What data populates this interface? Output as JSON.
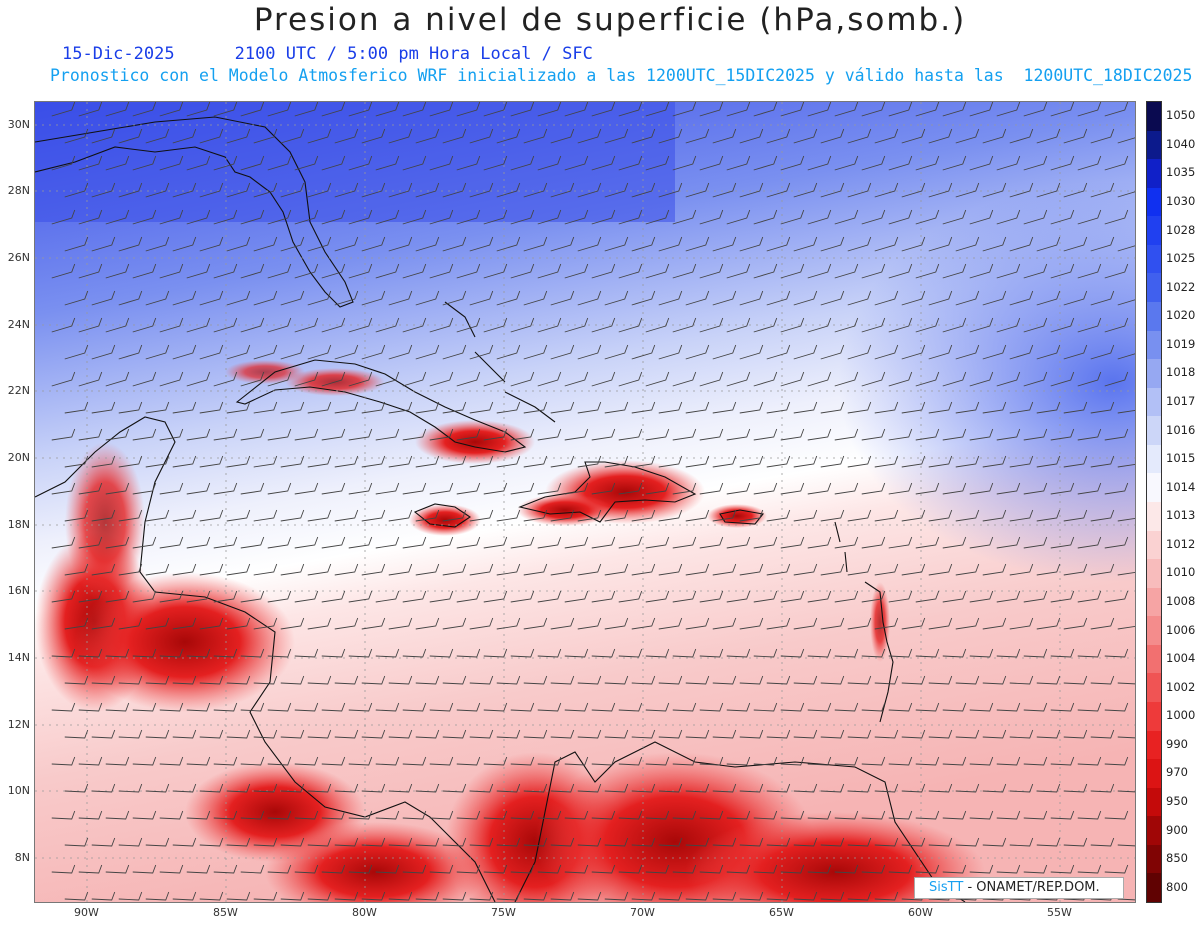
{
  "header": {
    "title": "Presion a nivel de superficie (hPa,somb.)",
    "date": "15-Dic-2025",
    "time_label": "2100 UTC / 5:00 pm Hora Local / SFC",
    "description": "Pronostico con el Modelo Atmosferico WRF inicializado a las 1200UTC_15DIC2025 y válido hasta las  1200UTC_18DIC2025"
  },
  "axes": {
    "lat_labels": [
      "30N",
      "28N",
      "26N",
      "24N",
      "22N",
      "20N",
      "18N",
      "16N",
      "14N",
      "12N",
      "10N",
      "8N"
    ],
    "lon_labels": [
      "90W",
      "85W",
      "80W",
      "75W",
      "70W",
      "65W",
      "60W",
      "55W"
    ]
  },
  "colorbar": {
    "levels": [
      "1050",
      "1040",
      "1035",
      "1030",
      "1028",
      "1025",
      "1022",
      "1020",
      "1019",
      "1018",
      "1017",
      "1016",
      "1015",
      "1014",
      "1013",
      "1012",
      "1010",
      "1008",
      "1006",
      "1004",
      "1002",
      "1000",
      "990",
      "970",
      "950",
      "900",
      "850",
      "800"
    ],
    "colors": [
      "#0a0a50",
      "#0c1a8c",
      "#1020c8",
      "#1030f0",
      "#2040f0",
      "#3050f0",
      "#4060ee",
      "#5a78ee",
      "#7890f0",
      "#96a8f2",
      "#b2c0f6",
      "#ccd6f8",
      "#e4eafc",
      "#f8f8fe",
      "#fce8e8",
      "#fad2d2",
      "#f8bcbc",
      "#f6a4a4",
      "#f48c8c",
      "#f27070",
      "#f05454",
      "#ee3a3a",
      "#e82222",
      "#dc1414",
      "#c40a0a",
      "#a00606",
      "#800404",
      "#600202"
    ]
  },
  "credit": {
    "sis": "SisTT",
    "org": "- ONAMET/REP.DOM."
  }
}
